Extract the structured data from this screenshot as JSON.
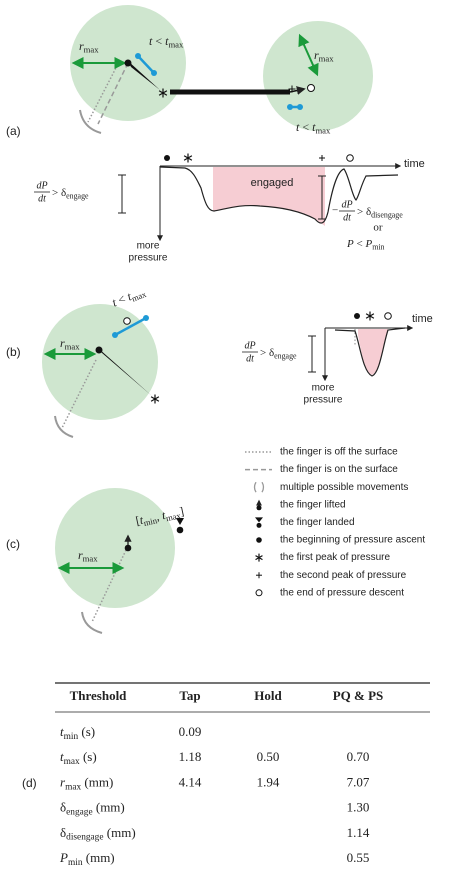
{
  "panels": {
    "a": "(a)",
    "b": "(b)",
    "c": "(c)",
    "d": "(d)"
  },
  "panel_a": {
    "r_max_left": [
      {
        "i": "r"
      },
      {
        "sub": "max"
      }
    ],
    "t_left": [
      {
        "i": "t"
      },
      {
        "t": " < "
      },
      {
        "i": "t"
      },
      {
        "sub": "max"
      }
    ],
    "r_max_right": [
      {
        "i": "r"
      },
      {
        "sub": "max"
      }
    ],
    "t_right": [
      {
        "i": "t"
      },
      {
        "t": " < "
      },
      {
        "i": "t"
      },
      {
        "sub": "max"
      }
    ],
    "time": "time",
    "engaged": "engaged",
    "engage_frac": {
      "num": "dP",
      "den": "dt"
    },
    "engage_rel": [
      {
        "t": "> δ"
      },
      {
        "sub": "engage"
      }
    ],
    "more": "more",
    "pressure": "pressure",
    "disengage_sign": "−",
    "disengage_frac": {
      "num": "dP",
      "den": "dt"
    },
    "disengage_rel": [
      {
        "t": "> δ"
      },
      {
        "sub": "disengage"
      }
    ],
    "or": "or",
    "pmin": [
      {
        "i": "P"
      },
      {
        "t": " < "
      },
      {
        "i": "P"
      },
      {
        "sub": "min"
      }
    ]
  },
  "panel_b": {
    "r_max": [
      {
        "i": "r"
      },
      {
        "sub": "max"
      }
    ],
    "t": [
      {
        "i": "t"
      },
      {
        "t": " < "
      },
      {
        "i": "t"
      },
      {
        "sub": "max"
      }
    ],
    "time": "time",
    "engage_frac": {
      "num": "dP",
      "den": "dt"
    },
    "engage_rel": [
      {
        "t": "> δ"
      },
      {
        "sub": "engage"
      }
    ],
    "more": "more",
    "pressure": "pressure"
  },
  "panel_c": {
    "r_max": [
      {
        "i": "r"
      },
      {
        "sub": "max"
      }
    ],
    "interval": [
      {
        "t": "["
      },
      {
        "i": "t"
      },
      {
        "sub": "min"
      },
      {
        "t": ", "
      },
      {
        "i": "t"
      },
      {
        "sub": "max"
      },
      {
        "t": "]"
      }
    ]
  },
  "legend": [
    "the finger is off the surface",
    "the finger is on the surface",
    "multiple possible movements",
    "the finger lifted",
    "the finger landed",
    "the beginning of pressure ascent",
    "the first peak of pressure",
    "the second peak of pressure",
    "the end of pressure descent"
  ],
  "table": {
    "header": [
      "Threshold",
      "Tap",
      "Hold",
      "PQ & PS"
    ],
    "rows": [
      {
        "label": [
          {
            "i": "t"
          },
          {
            "sub": "min"
          },
          {
            "t": " (s)"
          }
        ],
        "cells": [
          "0.09",
          null,
          null
        ]
      },
      {
        "label": [
          {
            "i": "t"
          },
          {
            "sub": "max"
          },
          {
            "t": " (s)"
          }
        ],
        "cells": [
          "1.18",
          "0.50",
          "0.70"
        ]
      },
      {
        "label": [
          {
            "i": "r"
          },
          {
            "sub": "max"
          },
          {
            "t": " (mm)"
          }
        ],
        "cells": [
          "4.14",
          "1.94",
          "7.07"
        ]
      },
      {
        "label": [
          {
            "t": "δ"
          },
          {
            "sub": "engage"
          },
          {
            "t": " (mm)"
          }
        ],
        "cells": [
          null,
          null,
          "1.30"
        ]
      },
      {
        "label": [
          {
            "t": "δ"
          },
          {
            "sub": "disengage"
          },
          {
            "t": " (mm)"
          }
        ],
        "cells": [
          null,
          null,
          "1.14"
        ]
      },
      {
        "label": [
          {
            "i": "P"
          },
          {
            "sub": "min"
          },
          {
            "t": " (mm)"
          }
        ],
        "cells": [
          null,
          null,
          "0.55"
        ]
      }
    ]
  }
}
